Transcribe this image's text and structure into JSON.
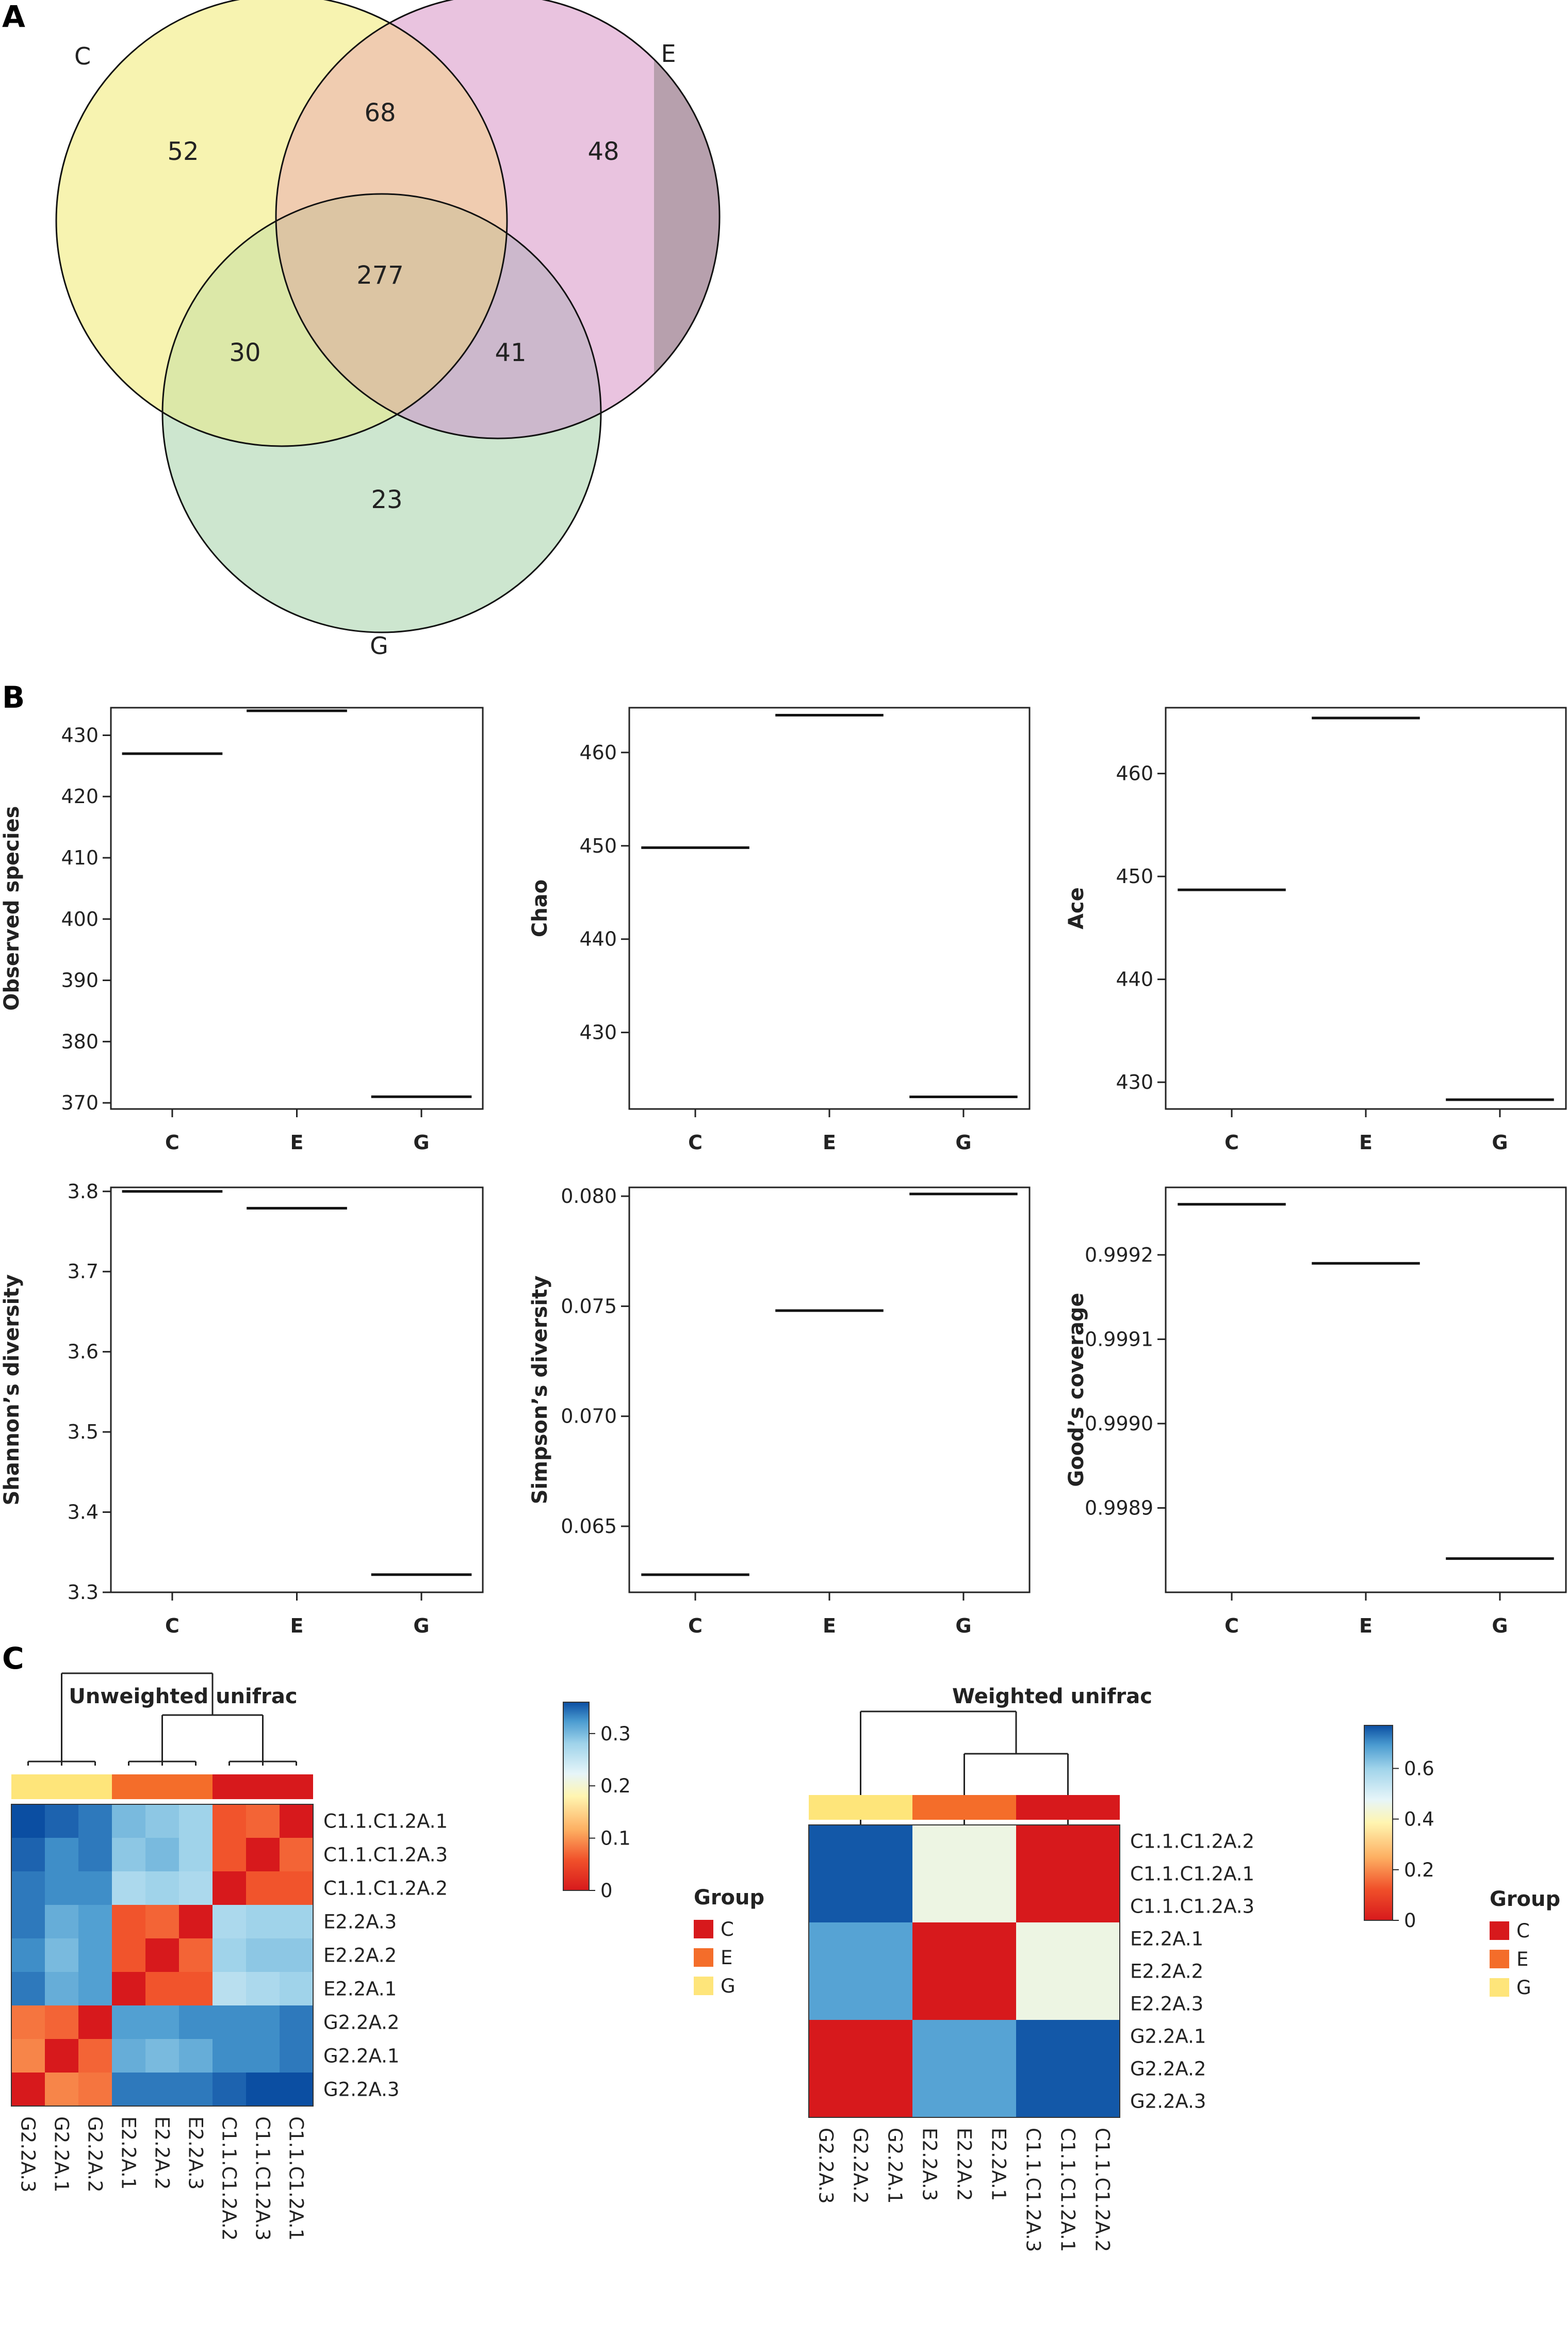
{
  "panels": {
    "a": "A",
    "b": "B",
    "c": "C"
  },
  "venn": {
    "sets": [
      {
        "name": "C",
        "color": "#f7f3b0"
      },
      {
        "name": "E",
        "color": "#e9c3df"
      },
      {
        "name": "G",
        "color": "#cde6cf"
      }
    ],
    "regions": {
      "C_only": "52",
      "E_only": "48",
      "G_only": "23",
      "C_E": "68",
      "C_G": "30",
      "E_G": "41",
      "C_E_G": "277"
    }
  },
  "chart_data": [
    {
      "type": "line",
      "ylabel": "Observed species",
      "categories": [
        "C",
        "E",
        "G"
      ],
      "values": [
        427,
        434,
        371
      ],
      "ylim": [
        369,
        434.5
      ],
      "ticks": [
        370,
        380,
        390,
        400,
        410,
        420,
        430
      ]
    },
    {
      "type": "line",
      "ylabel": "Chao",
      "categories": [
        "C",
        "E",
        "G"
      ],
      "values": [
        449.8,
        464.0,
        423.1
      ],
      "ylim": [
        421.8,
        464.8
      ],
      "ticks": [
        430,
        440,
        450,
        460
      ]
    },
    {
      "type": "line",
      "ylabel": "Ace",
      "categories": [
        "C",
        "E",
        "G"
      ],
      "values": [
        448.7,
        465.4,
        428.3
      ],
      "ylim": [
        427.4,
        466.4
      ],
      "ticks": [
        430,
        440,
        450,
        460
      ]
    },
    {
      "type": "line",
      "ylabel": "Shannon’s diversity",
      "categories": [
        "C",
        "E",
        "G"
      ],
      "values": [
        3.8,
        3.779,
        3.322
      ],
      "ylim": [
        3.3,
        3.805
      ],
      "ticks": [
        3.3,
        3.4,
        3.5,
        3.6,
        3.7,
        3.8
      ]
    },
    {
      "type": "line",
      "ylabel": "Simpson’s diversity",
      "categories": [
        "C",
        "E",
        "G"
      ],
      "values": [
        0.0628,
        0.0748,
        0.0801
      ],
      "ylim": [
        0.062,
        0.0804
      ],
      "ticks": [
        0.065,
        0.07,
        0.075,
        0.08
      ]
    },
    {
      "type": "line",
      "ylabel": "Good’s coverage",
      "categories": [
        "C",
        "E",
        "G"
      ],
      "values": [
        0.99926,
        0.99919,
        0.99884
      ],
      "ylim": [
        0.9988,
        0.99928
      ],
      "ticks": [
        0.9989,
        0.999,
        0.9991,
        0.9992
      ]
    },
    {
      "type": "heatmap",
      "title": "Unweighted unifrac",
      "rows": [
        "C1.1.C1.2A.1",
        "C1.1.C1.2A.3",
        "C1.1.C1.2A.2",
        "E2.2A.3",
        "E2.2A.2",
        "E2.2A.1",
        "G2.2A.2",
        "G2.2A.1",
        "G2.2A.3"
      ],
      "cols": [
        "G2.2A.3",
        "G2.2A.1",
        "G2.2A.2",
        "E2.2A.1",
        "E2.2A.2",
        "E2.2A.3",
        "C1.1.C1.2A.2",
        "C1.1.C1.2A.3",
        "C1.1.C1.2A.1"
      ],
      "col_groups": [
        "G",
        "G",
        "G",
        "E",
        "E",
        "E",
        "C",
        "C",
        "C"
      ],
      "colorbar": {
        "min": 0,
        "max": 0.36,
        "ticks": [
          "0",
          "0.1",
          "0.2",
          "0.3"
        ]
      },
      "values": [
        [
          0.36,
          0.35,
          0.34,
          0.3,
          0.29,
          0.28,
          0.06,
          0.07,
          0.0
        ],
        [
          0.35,
          0.33,
          0.34,
          0.29,
          0.3,
          0.28,
          0.06,
          0.0,
          0.07
        ],
        [
          0.34,
          0.33,
          0.33,
          0.27,
          0.28,
          0.27,
          0.0,
          0.06,
          0.06
        ],
        [
          0.34,
          0.31,
          0.32,
          0.06,
          0.07,
          0.0,
          0.27,
          0.28,
          0.28
        ],
        [
          0.33,
          0.3,
          0.32,
          0.06,
          0.0,
          0.07,
          0.28,
          0.29,
          0.29
        ],
        [
          0.34,
          0.31,
          0.32,
          0.0,
          0.06,
          0.06,
          0.26,
          0.27,
          0.28
        ],
        [
          0.08,
          0.07,
          0.0,
          0.32,
          0.32,
          0.33,
          0.33,
          0.33,
          0.34
        ],
        [
          0.09,
          0.0,
          0.07,
          0.31,
          0.3,
          0.31,
          0.33,
          0.33,
          0.34
        ],
        [
          0.0,
          0.09,
          0.08,
          0.34,
          0.34,
          0.34,
          0.35,
          0.36,
          0.36
        ]
      ]
    },
    {
      "type": "heatmap",
      "title": "Weighted unifrac",
      "rows": [
        "C1.1.C1.2A.2",
        "C1.1.C1.2A.1",
        "C1.1.C1.2A.3",
        "E2.2A.1",
        "E2.2A.2",
        "E2.2A.3",
        "G2.2A.1",
        "G2.2A.2",
        "G2.2A.3"
      ],
      "cols": [
        "G2.2A.3",
        "G2.2A.2",
        "G2.2A.1",
        "E2.2A.3",
        "E2.2A.2",
        "E2.2A.1",
        "C1.1.C1.2A.3",
        "C1.1.C1.2A.1",
        "C1.1.C1.2A.2"
      ],
      "col_groups": [
        "G",
        "G",
        "G",
        "E",
        "E",
        "E",
        "C",
        "C",
        "C"
      ],
      "colorbar": {
        "min": 0,
        "max": 0.77,
        "ticks": [
          "0",
          "0.2",
          "0.4",
          "0.6"
        ]
      },
      "values": [
        [
          0.76,
          0.76,
          0.76,
          0.45,
          0.45,
          0.45,
          0.0,
          0.0,
          0.0
        ],
        [
          0.76,
          0.76,
          0.76,
          0.45,
          0.45,
          0.45,
          0.0,
          0.0,
          0.0
        ],
        [
          0.76,
          0.76,
          0.76,
          0.45,
          0.45,
          0.45,
          0.0,
          0.0,
          0.0
        ],
        [
          0.68,
          0.68,
          0.68,
          0.0,
          0.0,
          0.0,
          0.45,
          0.45,
          0.45
        ],
        [
          0.68,
          0.68,
          0.68,
          0.0,
          0.0,
          0.0,
          0.45,
          0.45,
          0.45
        ],
        [
          0.68,
          0.68,
          0.68,
          0.0,
          0.0,
          0.0,
          0.45,
          0.45,
          0.45
        ],
        [
          0.0,
          0.0,
          0.0,
          0.68,
          0.68,
          0.68,
          0.76,
          0.76,
          0.76
        ],
        [
          0.0,
          0.0,
          0.0,
          0.68,
          0.68,
          0.68,
          0.76,
          0.76,
          0.76
        ],
        [
          0.0,
          0.0,
          0.0,
          0.68,
          0.68,
          0.68,
          0.76,
          0.76,
          0.76
        ]
      ]
    }
  ],
  "legend": {
    "title": "Group",
    "items": [
      {
        "label": "C",
        "color": "#d7191c"
      },
      {
        "label": "E",
        "color": "#f46d2a"
      },
      {
        "label": "G",
        "color": "#fee57a"
      }
    ]
  }
}
